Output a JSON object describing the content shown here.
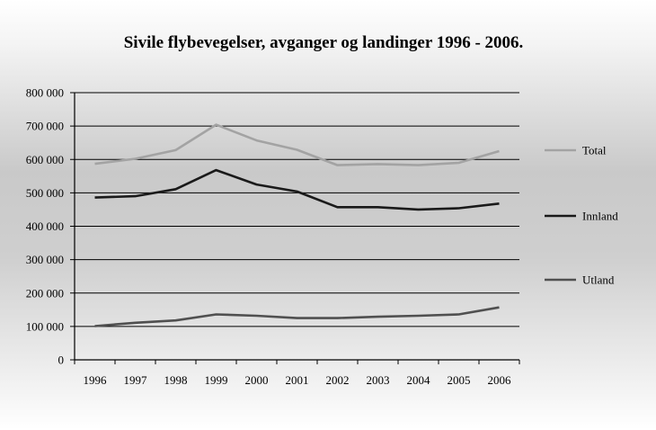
{
  "chart_data": {
    "type": "line",
    "title": "Sivile flybevegelser, avganger og landinger 1996 - 2006.",
    "xlabel": "",
    "ylabel": "",
    "categories": [
      "1996",
      "1997",
      "1998",
      "1999",
      "2000",
      "2001",
      "2002",
      "2003",
      "2004",
      "2005",
      "2006"
    ],
    "ylim": [
      0,
      800000
    ],
    "yticks": [
      0,
      100000,
      200000,
      300000,
      400000,
      500000,
      600000,
      700000,
      800000
    ],
    "ytick_labels": [
      "0",
      "100 000",
      "200 000",
      "300 000",
      "400 000",
      "500 000",
      "600 000",
      "700 000",
      "800 000"
    ],
    "grid": true,
    "legend_position": "right",
    "series": [
      {
        "name": "Total",
        "color": "#a3a3a3",
        "values": [
          587000,
          602000,
          628000,
          704000,
          657000,
          629000,
          583000,
          586000,
          583000,
          590000,
          625000
        ]
      },
      {
        "name": "Innland",
        "color": "#1a1a1a",
        "values": [
          486000,
          490000,
          511000,
          568000,
          525000,
          504000,
          457000,
          457000,
          450000,
          454000,
          468000
        ]
      },
      {
        "name": "Utland",
        "color": "#505050",
        "values": [
          101000,
          111000,
          118000,
          136000,
          132000,
          125000,
          125000,
          129000,
          132000,
          136000,
          157000
        ]
      }
    ]
  }
}
